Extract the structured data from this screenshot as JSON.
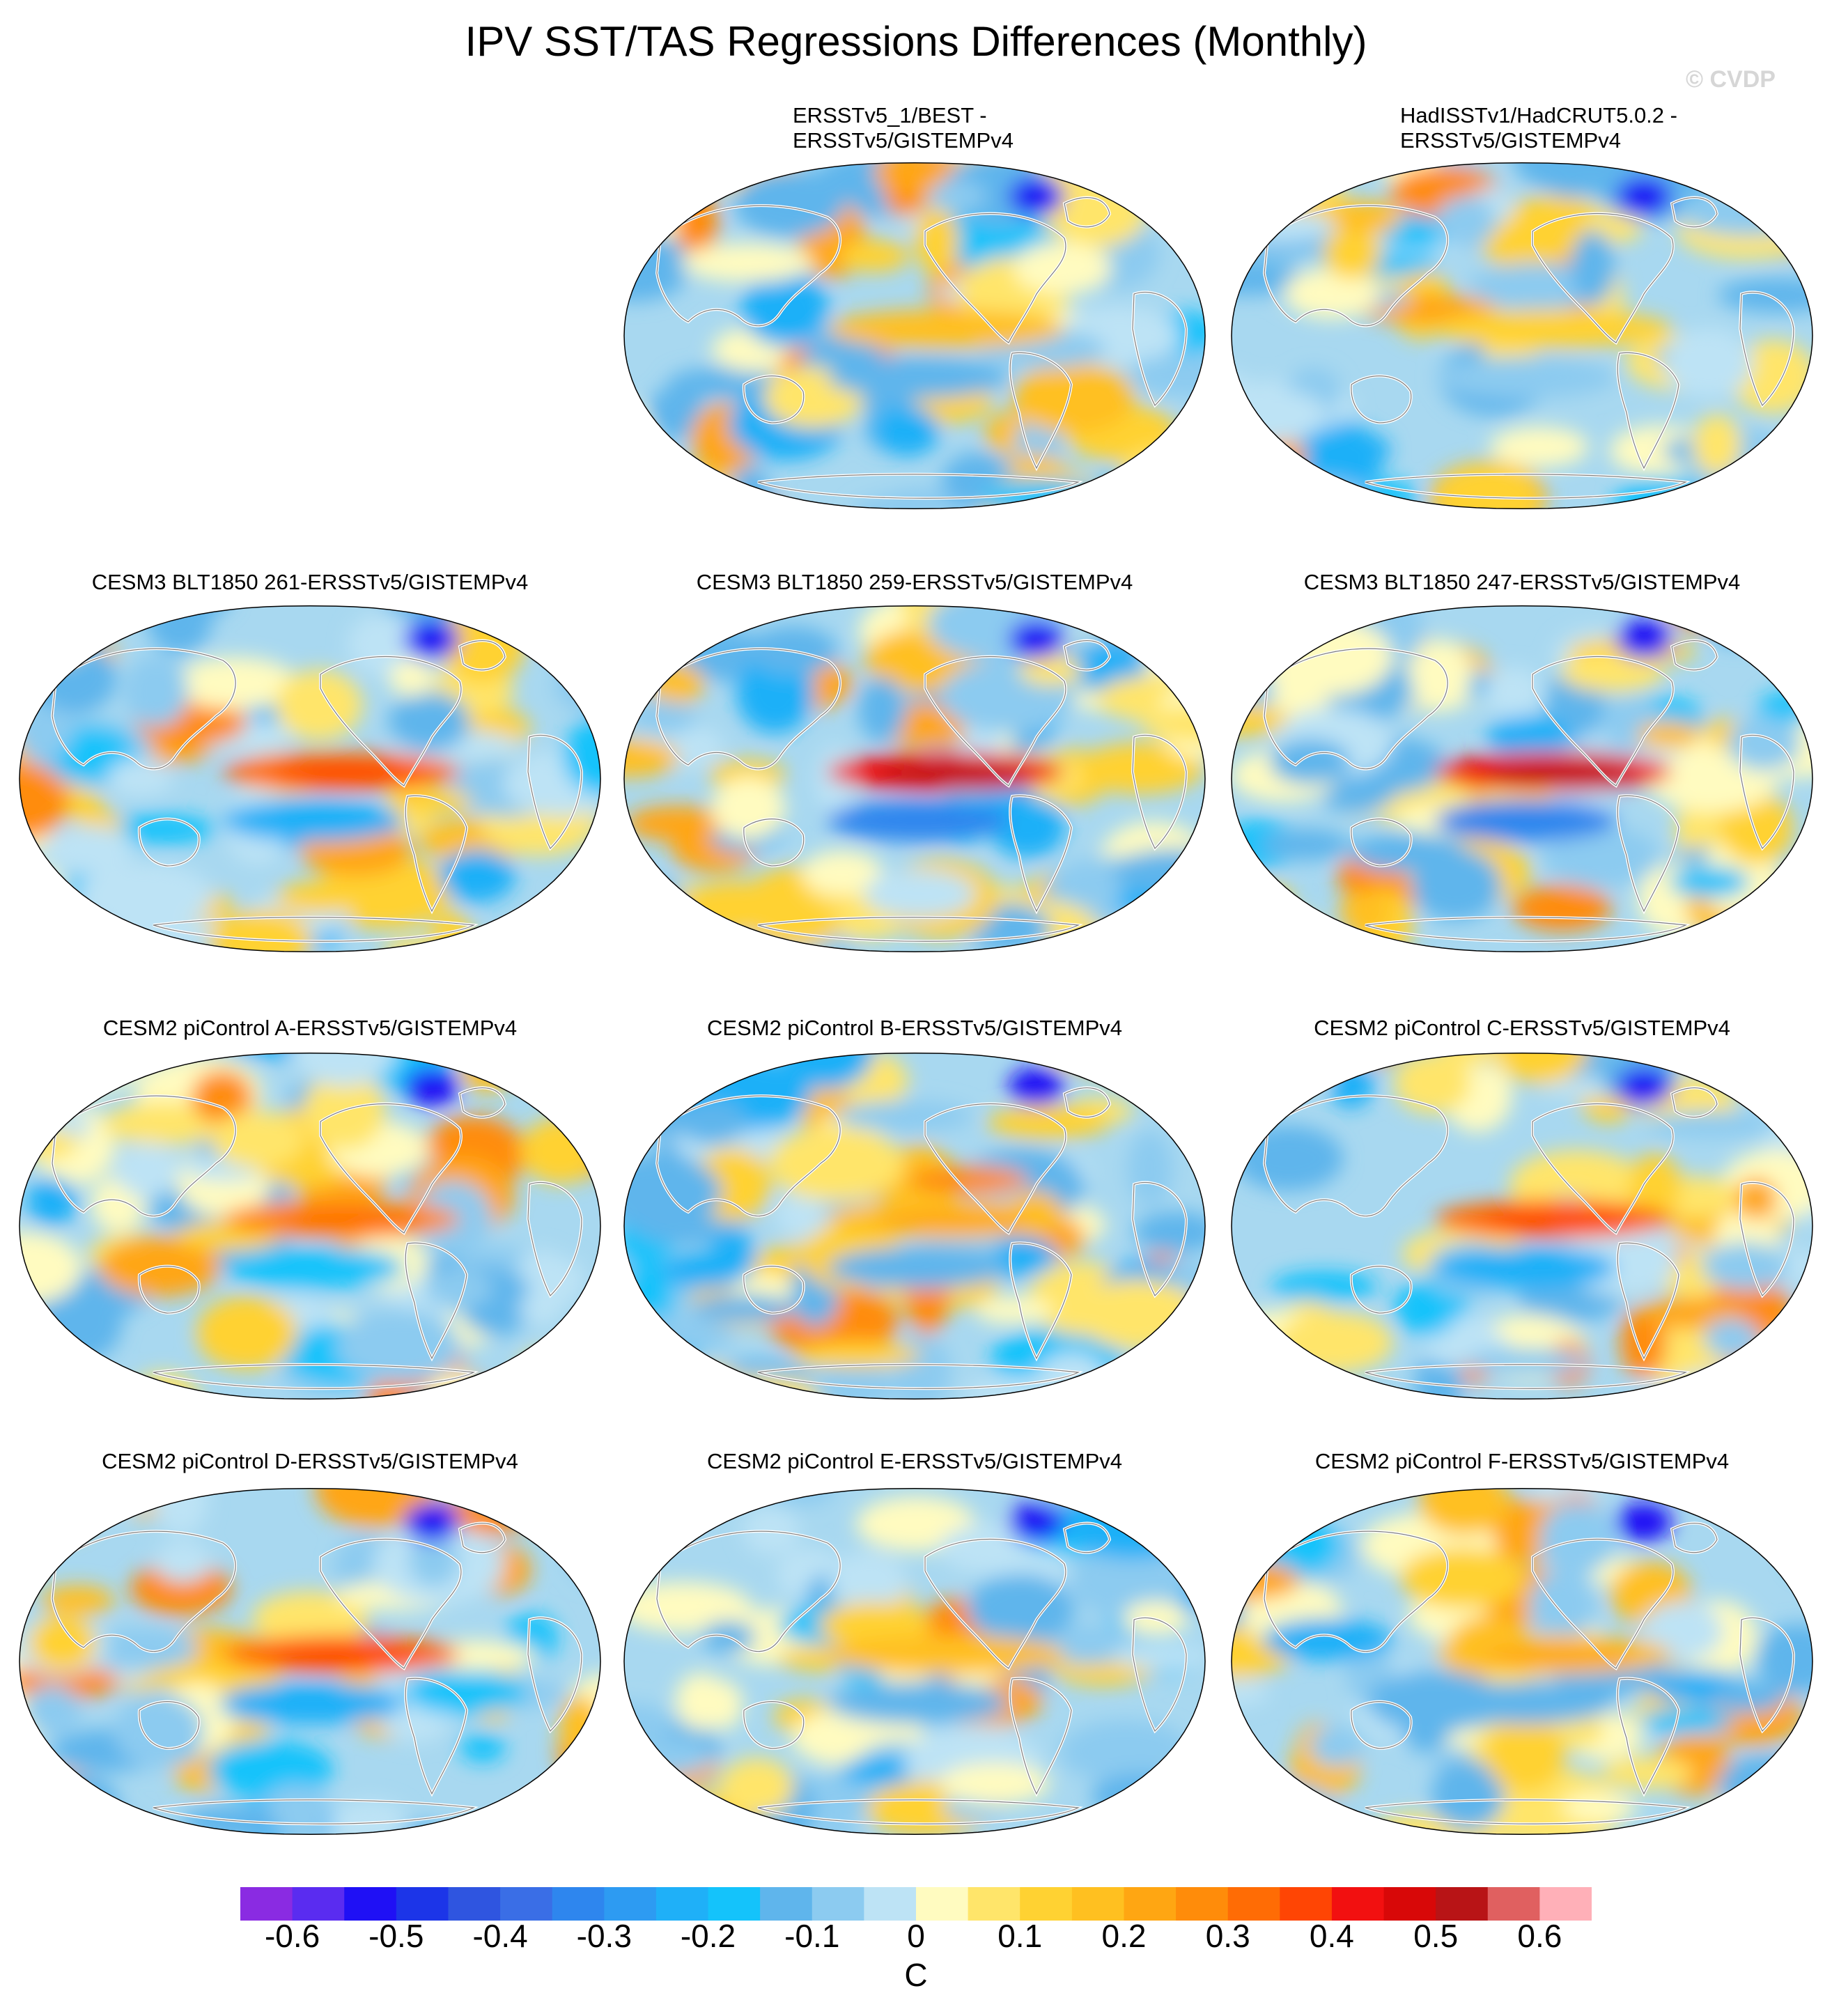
{
  "figure": {
    "title": "IPV SST/TAS Regressions Differences (Monthly)",
    "credit": "© CVDP",
    "units": "C",
    "colors": {
      "ocean_base": "#a8d8f0",
      "land_outline": "#ffffff",
      "coast_outline": "#7f7f7f",
      "map_border": "#000000"
    }
  },
  "chart_data": {
    "type": "heatmap",
    "projection": "robinson",
    "colorbar": {
      "levels": [
        -0.65,
        -0.6,
        -0.55,
        -0.5,
        -0.45,
        -0.4,
        -0.35,
        -0.3,
        -0.25,
        -0.2,
        -0.15,
        -0.1,
        -0.05,
        0,
        0.05,
        0.1,
        0.15,
        0.2,
        0.25,
        0.3,
        0.35,
        0.4,
        0.45,
        0.5,
        0.55,
        0.6,
        0.65
      ],
      "colors": [
        "#8a2be2",
        "#5a2cf0",
        "#1f10f5",
        "#1c35e8",
        "#2f55e0",
        "#3a6ee6",
        "#2e86ee",
        "#2d9bf2",
        "#1fb0f8",
        "#14c3fb",
        "#5fb5ec",
        "#8ccbf0",
        "#bde3f5",
        "#fffbc0",
        "#ffe56a",
        "#ffd232",
        "#ffc020",
        "#ffa612",
        "#ff8c0a",
        "#ff6c05",
        "#ff4504",
        "#f21010",
        "#d80808",
        "#b81416",
        "#e06060",
        "#ffb0b8"
      ],
      "tick_labels": [
        "-0.6",
        "-0.5",
        "-0.4",
        "-0.3",
        "-0.2",
        "-0.1",
        "0",
        "0.1",
        "0.2",
        "0.3",
        "0.4",
        "0.5",
        "0.6"
      ],
      "tick_values": [
        -0.6,
        -0.5,
        -0.4,
        -0.3,
        -0.2,
        -0.1,
        0,
        0.1,
        0.2,
        0.3,
        0.4,
        0.5,
        0.6
      ]
    },
    "panels": [
      {
        "title": "ERSSTv5_1/BEST -\nERSSTv5/GISTEMPv4",
        "row": 0,
        "col": 1
      },
      {
        "title": "HadISSTv1/HadCRUT5.0.2 -\nERSSTv5/GISTEMPv4",
        "row": 0,
        "col": 2
      },
      {
        "title": "CESM3 BLT1850 261-ERSSTv5/GISTEMPv4",
        "row": 1,
        "col": 0
      },
      {
        "title": "CESM3 BLT1850 259-ERSSTv5/GISTEMPv4",
        "row": 1,
        "col": 1
      },
      {
        "title": "CESM3 BLT1850 247-ERSSTv5/GISTEMPv4",
        "row": 1,
        "col": 2
      },
      {
        "title": "CESM2 piControl A-ERSSTv5/GISTEMPv4",
        "row": 2,
        "col": 0
      },
      {
        "title": "CESM2 piControl B-ERSSTv5/GISTEMPv4",
        "row": 2,
        "col": 1
      },
      {
        "title": "CESM2 piControl C-ERSSTv5/GISTEMPv4",
        "row": 2,
        "col": 2
      },
      {
        "title": "CESM2 piControl D-ERSSTv5/GISTEMPv4",
        "row": 3,
        "col": 0
      },
      {
        "title": "CESM2 piControl E-ERSSTv5/GISTEMPv4",
        "row": 3,
        "col": 1
      },
      {
        "title": "CESM2 piControl F-ERSSTv5/GISTEMPv4",
        "row": 3,
        "col": 2
      }
    ]
  }
}
